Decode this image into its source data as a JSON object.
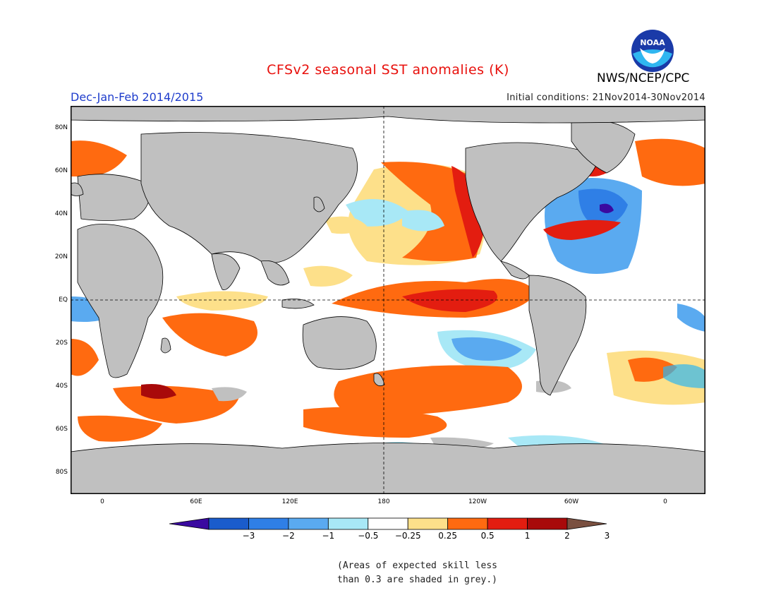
{
  "header": {
    "title": "CFSv2 seasonal SST anomalies (K)",
    "season": "Dec-Jan-Feb 2014/2015",
    "initial_conditions": "Initial conditions: 21Nov2014-30Nov2014",
    "agency": "NWS/NCEP/CPC",
    "logo_text": "NOAA"
  },
  "map": {
    "projection": "equirectangular",
    "land_color": "#c0c0c0",
    "lat_ticks": [
      "80N",
      "60N",
      "40N",
      "20N",
      "EQ",
      "20S",
      "40S",
      "60S",
      "80S"
    ],
    "lon_ticks": [
      "0",
      "60E",
      "120E",
      "180",
      "120W",
      "60W",
      "0"
    ],
    "reference_lines": [
      "EQ",
      "180"
    ]
  },
  "colorbar": {
    "labels": [
      "−3",
      "−2",
      "−1",
      "−0.5",
      "−0.25",
      "0.25",
      "0.5",
      "1",
      "2",
      "3"
    ],
    "colors": [
      "#3a0aa0",
      "#1a5ccc",
      "#2f7fe6",
      "#5aaaf0",
      "#a8e8f6",
      "#ffffff",
      "#fde08a",
      "#ff6a10",
      "#e31d10",
      "#a80a0a",
      "#7a5040"
    ]
  },
  "footnote": {
    "line1": "(Areas of expected skill less",
    "line2": "than 0.3 are shaded in grey.)"
  }
}
